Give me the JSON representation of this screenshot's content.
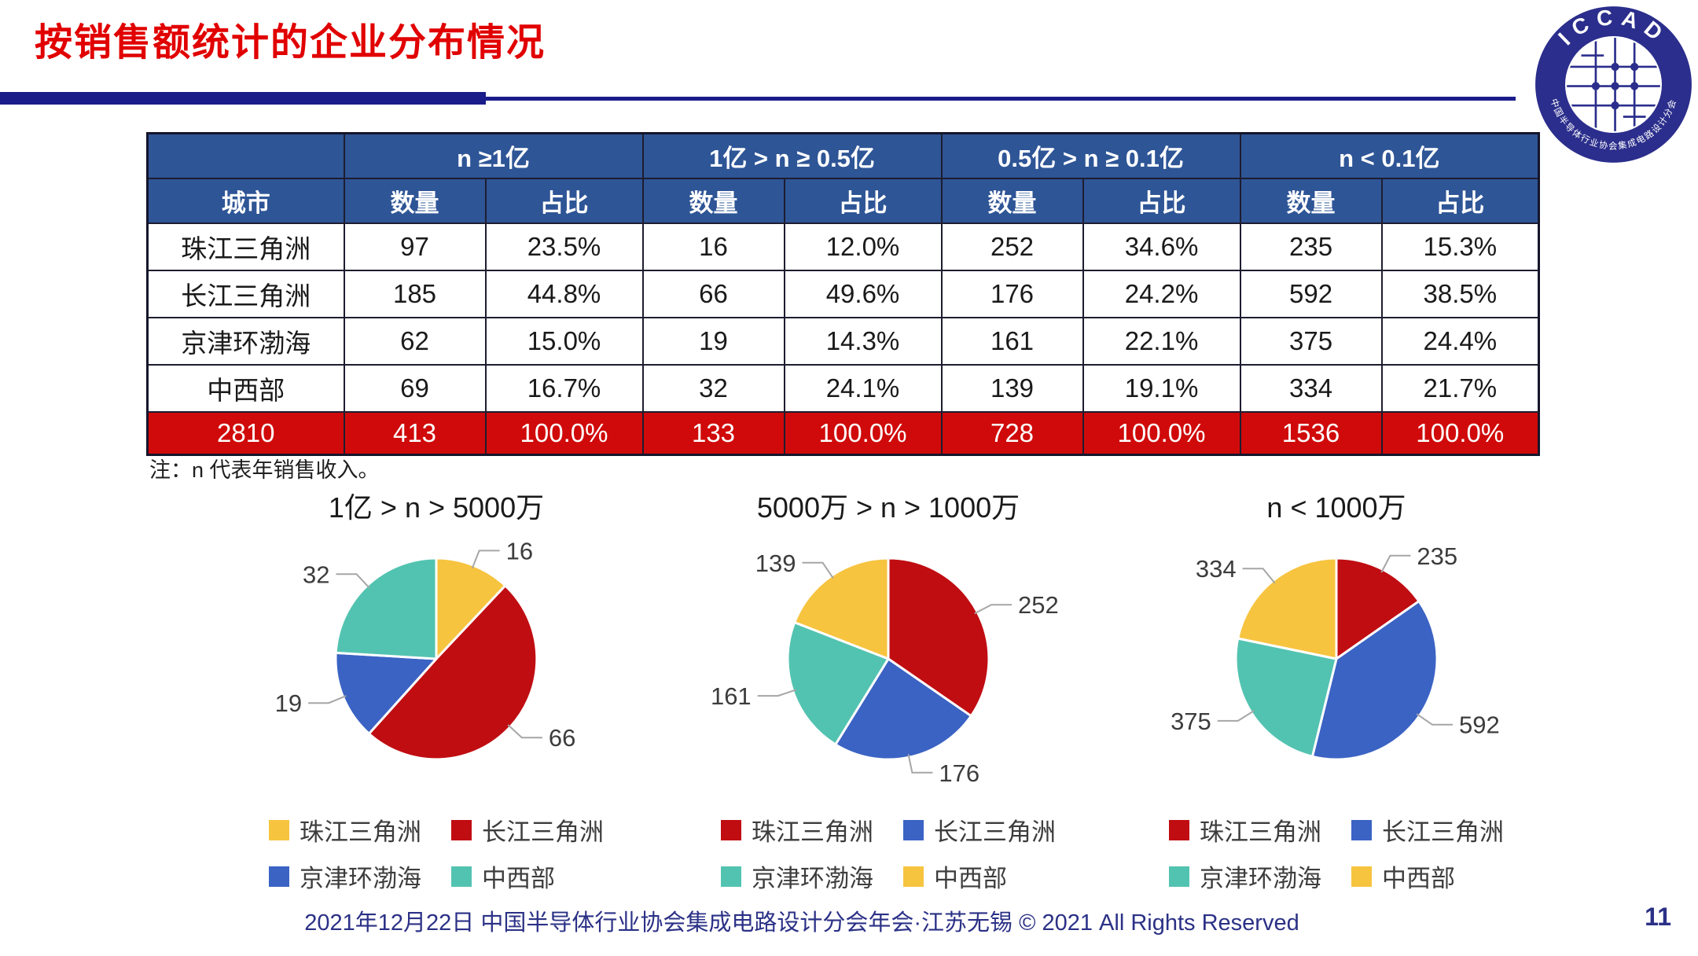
{
  "header": {
    "title": "按销售额统计的企业分布情况"
  },
  "logo": {
    "label": "ICCAD",
    "ring_text": "中国半导体行业协会集成电路设计分会"
  },
  "table": {
    "corner_label": "城市",
    "group_headers": [
      "n ≥1亿",
      "1亿 > n ≥ 0.5亿",
      "0.5亿 > n ≥ 0.1亿",
      "n < 0.1亿"
    ],
    "sub_headers": [
      "数量",
      "占比",
      "数量",
      "占比",
      "数量",
      "占比",
      "数量",
      "占比"
    ],
    "rows": [
      {
        "city": "珠江三角洲",
        "cells": [
          "97",
          "23.5%",
          "16",
          "12.0%",
          "252",
          "34.6%",
          "235",
          "15.3%"
        ]
      },
      {
        "city": "长江三角洲",
        "cells": [
          "185",
          "44.8%",
          "66",
          "49.6%",
          "176",
          "24.2%",
          "592",
          "38.5%"
        ]
      },
      {
        "city": "京津环渤海",
        "cells": [
          "62",
          "15.0%",
          "19",
          "14.3%",
          "161",
          "22.1%",
          "375",
          "24.4%"
        ]
      },
      {
        "city": "中西部",
        "cells": [
          "69",
          "16.7%",
          "32",
          "24.1%",
          "139",
          "19.1%",
          "334",
          "21.7%"
        ]
      }
    ],
    "total_row": [
      "2810",
      "413",
      "100.0%",
      "133",
      "100.0%",
      "728",
      "100.0%",
      "1536",
      "100.0%"
    ]
  },
  "note": "注：n 代表年销售收入。",
  "chart_data": [
    {
      "type": "pie",
      "title": "1亿 > n > 5000万",
      "categories": [
        "珠江三角洲",
        "长江三角洲",
        "京津环渤海",
        "中西部"
      ],
      "values": [
        16,
        66,
        19,
        32
      ],
      "colors": [
        "#f7c440",
        "#c00d12",
        "#3b63c4",
        "#53c3b1"
      ],
      "total": 133,
      "legend_position": "bottom",
      "start_angle_deg": 0,
      "direction": "clockwise"
    },
    {
      "type": "pie",
      "title": "5000万 > n > 1000万",
      "categories": [
        "珠江三角洲",
        "长江三角洲",
        "京津环渤海",
        "中西部"
      ],
      "values": [
        252,
        176,
        161,
        139
      ],
      "colors": [
        "#c00d12",
        "#3b63c4",
        "#53c3b1",
        "#f7c440"
      ],
      "total": 728,
      "legend_position": "bottom",
      "start_angle_deg": 0,
      "direction": "clockwise"
    },
    {
      "type": "pie",
      "title": "n < 1000万",
      "categories": [
        "珠江三角洲",
        "长江三角洲",
        "京津环渤海",
        "中西部"
      ],
      "values": [
        235,
        592,
        375,
        334
      ],
      "colors": [
        "#c00d12",
        "#3b63c4",
        "#53c3b1",
        "#f7c440"
      ],
      "total": 1536,
      "legend_position": "bottom",
      "start_angle_deg": 0,
      "direction": "clockwise"
    }
  ],
  "colors": {
    "title_red": "#e10000",
    "underline_navy": "#1a1c8a",
    "table_header_bg": "#2e5596",
    "total_row_bg": "#d00a0a",
    "pie_yellow": "#f7c440",
    "pie_red": "#c00d12",
    "pie_blue": "#3b63c4",
    "pie_teal": "#53c3b1",
    "footer_navy": "#2b3186"
  },
  "footer": {
    "text": "2021年12月22日 中国半导体行业协会集成电路设计分会年会·江苏无锡 © 2021 All Rights Reserved",
    "page": "11"
  }
}
